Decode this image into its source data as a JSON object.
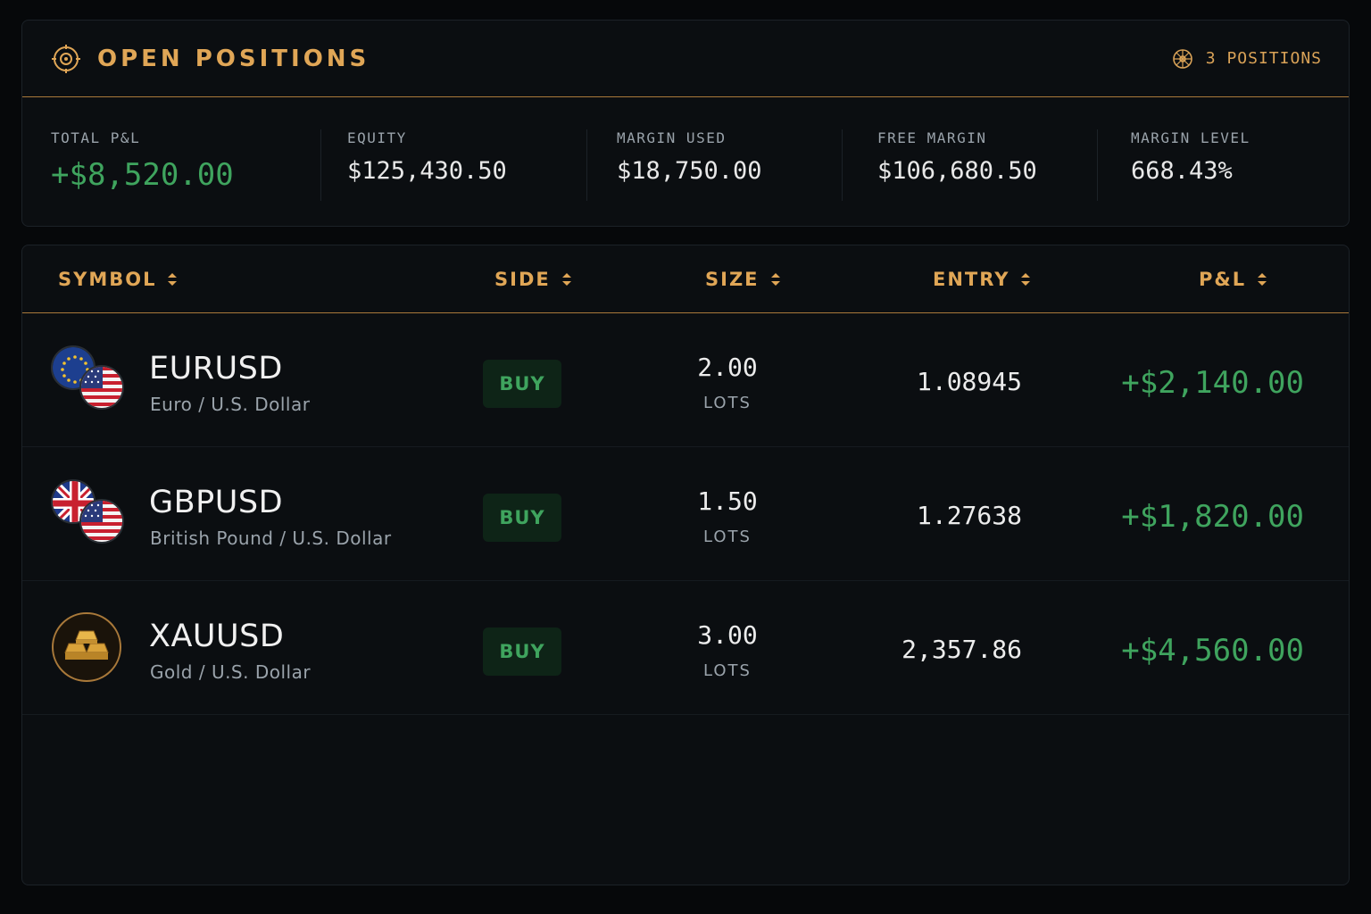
{
  "header": {
    "title": "OPEN POSITIONS",
    "positions_count": "3 POSITIONS",
    "icon": "target-icon",
    "count_icon": "network-icon"
  },
  "summary": {
    "total_pnl": {
      "label": "TOTAL P&L",
      "value": "+$8,520.00"
    },
    "equity": {
      "label": "EQUITY",
      "value": "$125,430.50"
    },
    "margin_used": {
      "label": "MARGIN USED",
      "value": "$18,750.00"
    },
    "free_margin": {
      "label": "FREE MARGIN",
      "value": "$106,680.50"
    },
    "margin_level": {
      "label": "MARGIN LEVEL",
      "value": "668.43%"
    }
  },
  "table": {
    "columns": [
      "SYMBOL",
      "SIDE",
      "SIZE",
      "ENTRY",
      "P&L"
    ],
    "rows": [
      {
        "symbol": "EURUSD",
        "description": "Euro / U.S. Dollar",
        "side": "BUY",
        "size": "2.00",
        "size_unit": "LOTS",
        "entry": "1.08945",
        "pnl": "+$2,140.00",
        "icon": "eu-us-flags-icon"
      },
      {
        "symbol": "GBPUSD",
        "description": "British Pound / U.S. Dollar",
        "side": "BUY",
        "size": "1.50",
        "size_unit": "LOTS",
        "entry": "1.27638",
        "pnl": "+$1,820.00",
        "icon": "uk-us-flags-icon"
      },
      {
        "symbol": "XAUUSD",
        "description": "Gold / U.S. Dollar",
        "side": "BUY",
        "size": "3.00",
        "size_unit": "LOTS",
        "entry": "2,357.86",
        "pnl": "+$4,560.00",
        "icon": "gold-bars-icon"
      }
    ]
  },
  "colors": {
    "accent": "#e0a656",
    "positive": "#3fa45e",
    "background": "#06080a",
    "panel": "#0b0e11"
  }
}
